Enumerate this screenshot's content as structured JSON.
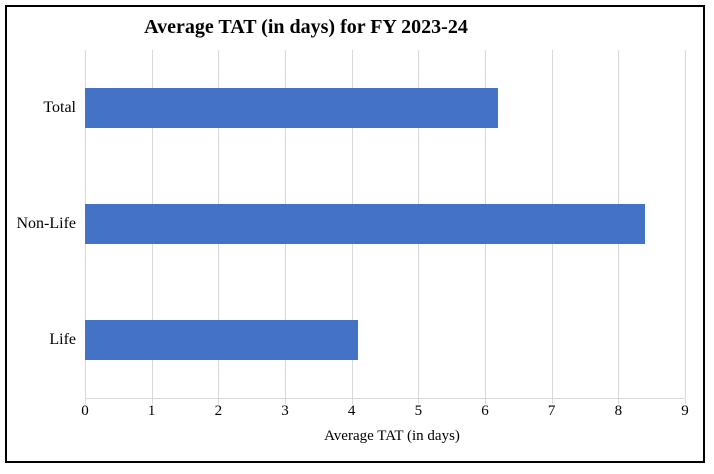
{
  "chart_data": {
    "type": "bar",
    "orientation": "horizontal",
    "title": "Average TAT (in days) for FY 2023-24",
    "xlabel": "Average TAT (in days)",
    "ylabel": "",
    "categories": [
      "Total",
      "Non-Life",
      "Life"
    ],
    "values": [
      6.2,
      8.4,
      4.1
    ],
    "category_order_note": "listed top to bottom as displayed",
    "xlim": [
      0,
      9
    ],
    "xticks": [
      "0",
      "1",
      "2",
      "3",
      "4",
      "5",
      "6",
      "7",
      "8",
      "9"
    ],
    "grid": true,
    "legend": false,
    "colors": {
      "bar": "#4472C4",
      "gridline": "#D9D9D9",
      "text": "#000000",
      "border": "#000000",
      "background": "#FFFFFF"
    }
  }
}
